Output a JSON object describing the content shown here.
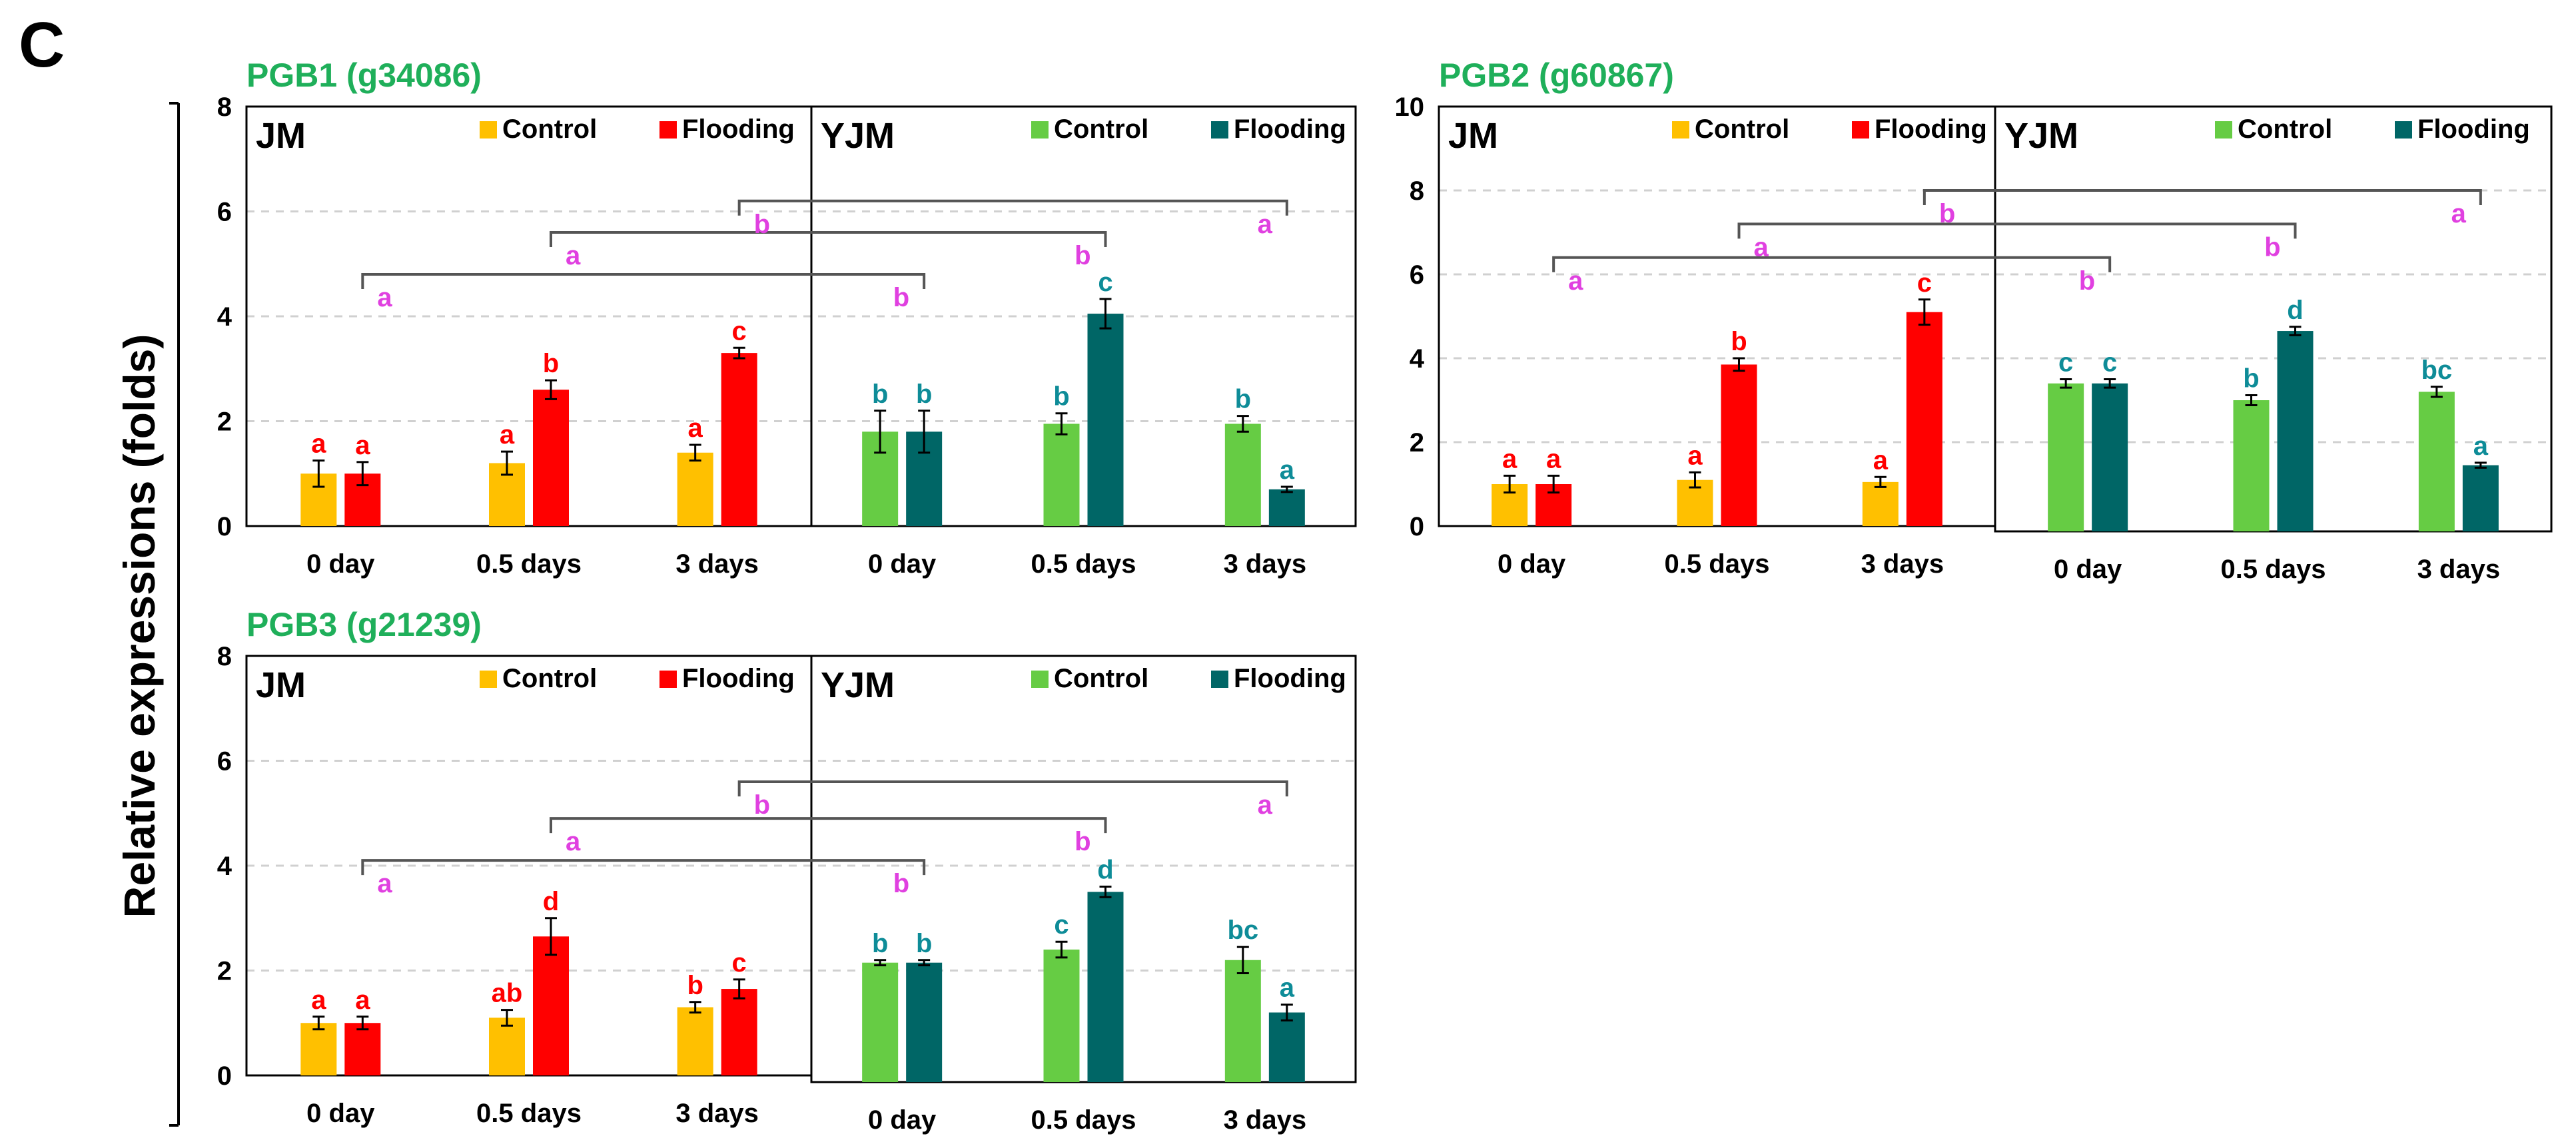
{
  "panel_label": "C",
  "y_axis_label": "Relative expressions (folds)",
  "colors": {
    "jm_control": "#FFC000",
    "jm_flooding": "#FF0000",
    "yjm_control": "#66CC44",
    "yjm_flooding": "#006666",
    "title_green": "#1FAF5A",
    "magenta": "#E040E0",
    "letter_red": "#FF0000",
    "letter_teal": "#0E8C98"
  },
  "chart_data": [
    {
      "type": "bar",
      "title": "PGB1 (g34086)",
      "ylabel": "Relative expressions (folds)",
      "ylim": [
        0,
        8
      ],
      "yticks": [
        "0",
        "2",
        "4",
        "6",
        "8"
      ],
      "groups": [
        {
          "name": "JM",
          "legend": [
            "Control",
            "Flooding"
          ],
          "categories": [
            "0 day",
            "0.5 days",
            "3 days"
          ],
          "series": [
            {
              "name": "Control",
              "values": [
                1.0,
                1.2,
                1.4
              ],
              "errors": [
                0.25,
                0.22,
                0.15
              ],
              "letters": [
                "a",
                "a",
                "a"
              ]
            },
            {
              "name": "Flooding",
              "values": [
                1.0,
                2.6,
                3.3
              ],
              "errors": [
                0.22,
                0.18,
                0.1
              ],
              "letters": [
                "a",
                "b",
                "c"
              ]
            }
          ]
        },
        {
          "name": "YJM",
          "legend": [
            "Control",
            "Flooding"
          ],
          "categories": [
            "0 day",
            "0.5 days",
            "3 days"
          ],
          "series": [
            {
              "name": "Control",
              "values": [
                1.8,
                1.95,
                1.95
              ],
              "errors": [
                0.4,
                0.2,
                0.15
              ],
              "letters": [
                "b",
                "b",
                "b"
              ]
            },
            {
              "name": "Flooding",
              "values": [
                1.8,
                4.05,
                0.7
              ],
              "errors": [
                0.4,
                0.28,
                0.05
              ],
              "letters": [
                "b",
                "c",
                "a"
              ]
            }
          ]
        }
      ],
      "comparisons": [
        {
          "from_group": 0,
          "from_cat": 0,
          "to_group": 1,
          "to_cat": 0,
          "level": 4.8,
          "letters": [
            "a",
            "b"
          ]
        },
        {
          "from_group": 0,
          "from_cat": 1,
          "to_group": 1,
          "to_cat": 1,
          "level": 5.6,
          "letters": [
            "a",
            "b"
          ]
        },
        {
          "from_group": 0,
          "from_cat": 2,
          "to_group": 1,
          "to_cat": 2,
          "level": 6.2,
          "letters": [
            "b",
            "a"
          ]
        }
      ]
    },
    {
      "type": "bar",
      "title": "PGB2 (g60867)",
      "ylabel": "Relative expressions (folds)",
      "ylim": [
        0,
        10
      ],
      "yticks": [
        "0",
        "2",
        "4",
        "6",
        "8",
        "10"
      ],
      "groups": [
        {
          "name": "JM",
          "legend": [
            "Control",
            "Flooding"
          ],
          "categories": [
            "0 day",
            "0.5 days",
            "3 days"
          ],
          "series": [
            {
              "name": "Control",
              "values": [
                1.0,
                1.1,
                1.05
              ],
              "errors": [
                0.2,
                0.18,
                0.12
              ],
              "letters": [
                "a",
                "a",
                "a"
              ]
            },
            {
              "name": "Flooding",
              "values": [
                1.0,
                3.85,
                5.1
              ],
              "errors": [
                0.2,
                0.15,
                0.3
              ],
              "letters": [
                "a",
                "b",
                "c"
              ]
            }
          ]
        },
        {
          "name": "YJM",
          "legend": [
            "Control",
            "Flooding"
          ],
          "categories": [
            "0 day",
            "0.5 days",
            "3 days"
          ],
          "series": [
            {
              "name": "Control",
              "values": [
                3.4,
                3.0,
                3.2
              ],
              "errors": [
                0.1,
                0.12,
                0.12
              ],
              "letters": [
                "c",
                "b",
                "bc"
              ]
            },
            {
              "name": "Flooding",
              "values": [
                3.4,
                4.65,
                1.45
              ],
              "errors": [
                0.1,
                0.1,
                0.06
              ],
              "letters": [
                "c",
                "d",
                "a"
              ]
            }
          ]
        }
      ],
      "comparisons": [
        {
          "from_group": 0,
          "from_cat": 0,
          "to_group": 1,
          "to_cat": 0,
          "level": 6.4,
          "letters": [
            "a",
            "b"
          ]
        },
        {
          "from_group": 0,
          "from_cat": 1,
          "to_group": 1,
          "to_cat": 1,
          "level": 7.2,
          "letters": [
            "a",
            "b"
          ]
        },
        {
          "from_group": 0,
          "from_cat": 2,
          "to_group": 1,
          "to_cat": 2,
          "level": 8.0,
          "letters": [
            "b",
            "a"
          ]
        }
      ]
    },
    {
      "type": "bar",
      "title": "PGB3 (g21239)",
      "ylabel": "Relative expressions (folds)",
      "ylim": [
        0,
        8
      ],
      "yticks": [
        "0",
        "2",
        "4",
        "6",
        "8"
      ],
      "groups": [
        {
          "name": "JM",
          "legend": [
            "Control",
            "Flooding"
          ],
          "categories": [
            "0 day",
            "0.5 days",
            "3 days"
          ],
          "series": [
            {
              "name": "Control",
              "values": [
                1.0,
                1.1,
                1.3
              ],
              "errors": [
                0.12,
                0.15,
                0.1
              ],
              "letters": [
                "a",
                "ab",
                "b"
              ]
            },
            {
              "name": "Flooding",
              "values": [
                1.0,
                2.65,
                1.65
              ],
              "errors": [
                0.12,
                0.35,
                0.18
              ],
              "letters": [
                "a",
                "d",
                "c"
              ]
            }
          ]
        },
        {
          "name": "YJM",
          "legend": [
            "Control",
            "Flooding"
          ],
          "categories": [
            "0 day",
            "0.5 days",
            "3 days"
          ],
          "series": [
            {
              "name": "Control",
              "values": [
                2.15,
                2.4,
                2.2
              ],
              "errors": [
                0.05,
                0.15,
                0.25
              ],
              "letters": [
                "b",
                "c",
                "bc"
              ]
            },
            {
              "name": "Flooding",
              "values": [
                2.15,
                3.5,
                1.2
              ],
              "errors": [
                0.05,
                0.1,
                0.15
              ],
              "letters": [
                "b",
                "d",
                "a"
              ]
            }
          ]
        }
      ],
      "comparisons": [
        {
          "from_group": 0,
          "from_cat": 0,
          "to_group": 1,
          "to_cat": 0,
          "level": 4.1,
          "letters": [
            "a",
            "b"
          ]
        },
        {
          "from_group": 0,
          "from_cat": 1,
          "to_group": 1,
          "to_cat": 1,
          "level": 4.9,
          "letters": [
            "a",
            "b"
          ]
        },
        {
          "from_group": 0,
          "from_cat": 2,
          "to_group": 1,
          "to_cat": 2,
          "level": 5.6,
          "letters": [
            "b",
            "a"
          ]
        }
      ]
    }
  ]
}
